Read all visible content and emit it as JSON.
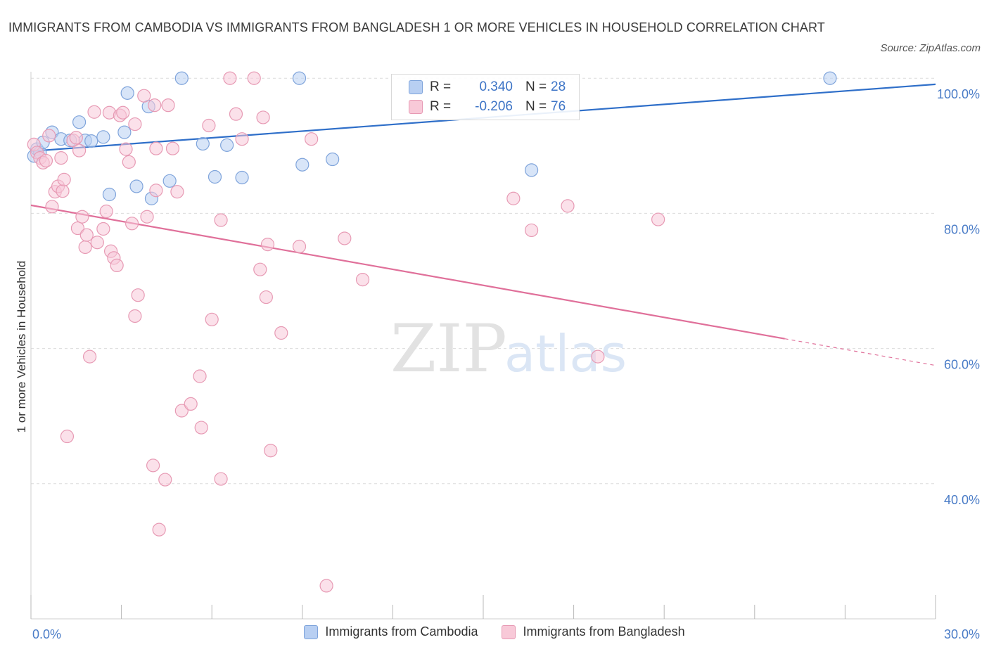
{
  "title": "IMMIGRANTS FROM CAMBODIA VS IMMIGRANTS FROM BANGLADESH 1 OR MORE VEHICLES IN HOUSEHOLD CORRELATION CHART",
  "source": "Source: ZipAtlas.com",
  "watermark": {
    "zip": "ZIP",
    "atlas": "atlas"
  },
  "stats": {
    "cambodia": {
      "r_label": "R =",
      "r_value": "0.340",
      "n_label": "N =",
      "n_value": "28"
    },
    "bangladesh": {
      "r_label": "R =",
      "r_value": "-0.206",
      "n_label": "N =",
      "n_value": "76"
    }
  },
  "legend": {
    "cambodia": "Immigrants from Cambodia",
    "bangladesh": "Immigrants from Bangladesh"
  },
  "colors": {
    "blue_fill": "#b8cff2",
    "blue_stroke": "#7fa4db",
    "blue_line": "#2f6fc9",
    "pink_fill": "#f8c9d8",
    "pink_stroke": "#e79ab4",
    "pink_line": "#e0709a",
    "tick_label": "#4a7cc7"
  },
  "chart_data": {
    "type": "scatter",
    "title": "IMMIGRANTS FROM CAMBODIA VS IMMIGRANTS FROM BANGLADESH 1 OR MORE VEHICLES IN HOUSEHOLD CORRELATION CHART",
    "xlabel": "",
    "ylabel": "1 or more Vehicles in Household",
    "xlim": [
      0,
      30
    ],
    "ylim": [
      20,
      102
    ],
    "x_tick_labels": [
      "0.0%",
      "30.0%"
    ],
    "y_ticks": [
      40,
      60,
      80,
      100
    ],
    "y_tick_labels": [
      "40.0%",
      "60.0%",
      "80.0%",
      "100.0%"
    ],
    "grid": true,
    "legend_position": "bottom",
    "series": [
      {
        "name": "Immigrants from Cambodia",
        "color": "#b8cff2",
        "points": [
          [
            0.1,
            88.5
          ],
          [
            0.2,
            89.5
          ],
          [
            0.3,
            89.0
          ],
          [
            0.4,
            90.5
          ],
          [
            0.7,
            92.0
          ],
          [
            1.0,
            91.0
          ],
          [
            1.3,
            90.8
          ],
          [
            1.6,
            93.5
          ],
          [
            1.8,
            90.8
          ],
          [
            2.0,
            90.7
          ],
          [
            2.4,
            91.3
          ],
          [
            2.6,
            82.8
          ],
          [
            3.1,
            92.0
          ],
          [
            3.2,
            97.8
          ],
          [
            3.5,
            84.0
          ],
          [
            3.9,
            95.8
          ],
          [
            4.0,
            82.2
          ],
          [
            4.6,
            84.8
          ],
          [
            5.0,
            100.0
          ],
          [
            5.7,
            90.3
          ],
          [
            6.1,
            85.4
          ],
          [
            6.5,
            90.1
          ],
          [
            7.0,
            85.3
          ],
          [
            8.9,
            100.0
          ],
          [
            9.0,
            87.2
          ],
          [
            10.0,
            88.0
          ],
          [
            16.6,
            86.4
          ],
          [
            26.5,
            100.0
          ]
        ],
        "trend": {
          "x": [
            0,
            30
          ],
          "y": [
            89.2,
            99.1
          ]
        }
      },
      {
        "name": "Immigrants from Bangladesh",
        "color": "#f8c9d8",
        "points": [
          [
            0.1,
            90.2
          ],
          [
            0.2,
            89.0
          ],
          [
            0.3,
            88.2
          ],
          [
            0.4,
            87.5
          ],
          [
            0.5,
            87.8
          ],
          [
            0.6,
            91.5
          ],
          [
            0.7,
            81.0
          ],
          [
            0.8,
            83.2
          ],
          [
            0.9,
            84.0
          ],
          [
            1.0,
            88.2
          ],
          [
            1.05,
            83.3
          ],
          [
            1.1,
            85.0
          ],
          [
            1.2,
            47.0
          ],
          [
            1.4,
            90.8
          ],
          [
            1.5,
            91.2
          ],
          [
            1.6,
            89.3
          ],
          [
            1.55,
            77.8
          ],
          [
            1.7,
            79.5
          ],
          [
            1.8,
            75.0
          ],
          [
            1.85,
            76.8
          ],
          [
            1.95,
            58.8
          ],
          [
            2.1,
            95.0
          ],
          [
            2.2,
            75.7
          ],
          [
            2.4,
            77.7
          ],
          [
            2.5,
            80.3
          ],
          [
            2.6,
            94.9
          ],
          [
            2.65,
            74.4
          ],
          [
            2.75,
            73.4
          ],
          [
            2.85,
            72.3
          ],
          [
            2.95,
            94.5
          ],
          [
            3.05,
            94.9
          ],
          [
            3.15,
            89.5
          ],
          [
            3.25,
            87.6
          ],
          [
            3.35,
            78.5
          ],
          [
            3.45,
            93.2
          ],
          [
            3.45,
            64.8
          ],
          [
            3.55,
            67.9
          ],
          [
            3.75,
            97.4
          ],
          [
            3.85,
            79.5
          ],
          [
            4.1,
            96.0
          ],
          [
            4.15,
            89.6
          ],
          [
            4.15,
            83.4
          ],
          [
            4.05,
            42.7
          ],
          [
            4.25,
            33.2
          ],
          [
            4.45,
            40.6
          ],
          [
            4.55,
            96.0
          ],
          [
            4.7,
            89.6
          ],
          [
            4.85,
            83.2
          ],
          [
            5.0,
            50.8
          ],
          [
            5.3,
            51.8
          ],
          [
            5.6,
            55.9
          ],
          [
            5.65,
            48.3
          ],
          [
            5.9,
            93.0
          ],
          [
            6.0,
            64.3
          ],
          [
            6.3,
            79.0
          ],
          [
            6.3,
            40.7
          ],
          [
            6.6,
            100.0
          ],
          [
            6.8,
            94.7
          ],
          [
            7.0,
            91.0
          ],
          [
            7.4,
            100.0
          ],
          [
            7.6,
            71.7
          ],
          [
            7.7,
            94.2
          ],
          [
            7.8,
            67.6
          ],
          [
            7.85,
            75.4
          ],
          [
            7.95,
            44.9
          ],
          [
            8.3,
            62.3
          ],
          [
            8.9,
            75.1
          ],
          [
            9.3,
            91.0
          ],
          [
            9.8,
            24.9
          ],
          [
            10.4,
            76.3
          ],
          [
            11.0,
            70.2
          ],
          [
            16.0,
            82.2
          ],
          [
            16.6,
            77.5
          ],
          [
            17.8,
            81.1
          ],
          [
            18.8,
            58.8
          ],
          [
            20.8,
            79.1
          ]
        ],
        "trend": {
          "x": [
            0,
            30
          ],
          "y": [
            81.2,
            57.5
          ],
          "solid_until_x": 25
        }
      }
    ]
  }
}
